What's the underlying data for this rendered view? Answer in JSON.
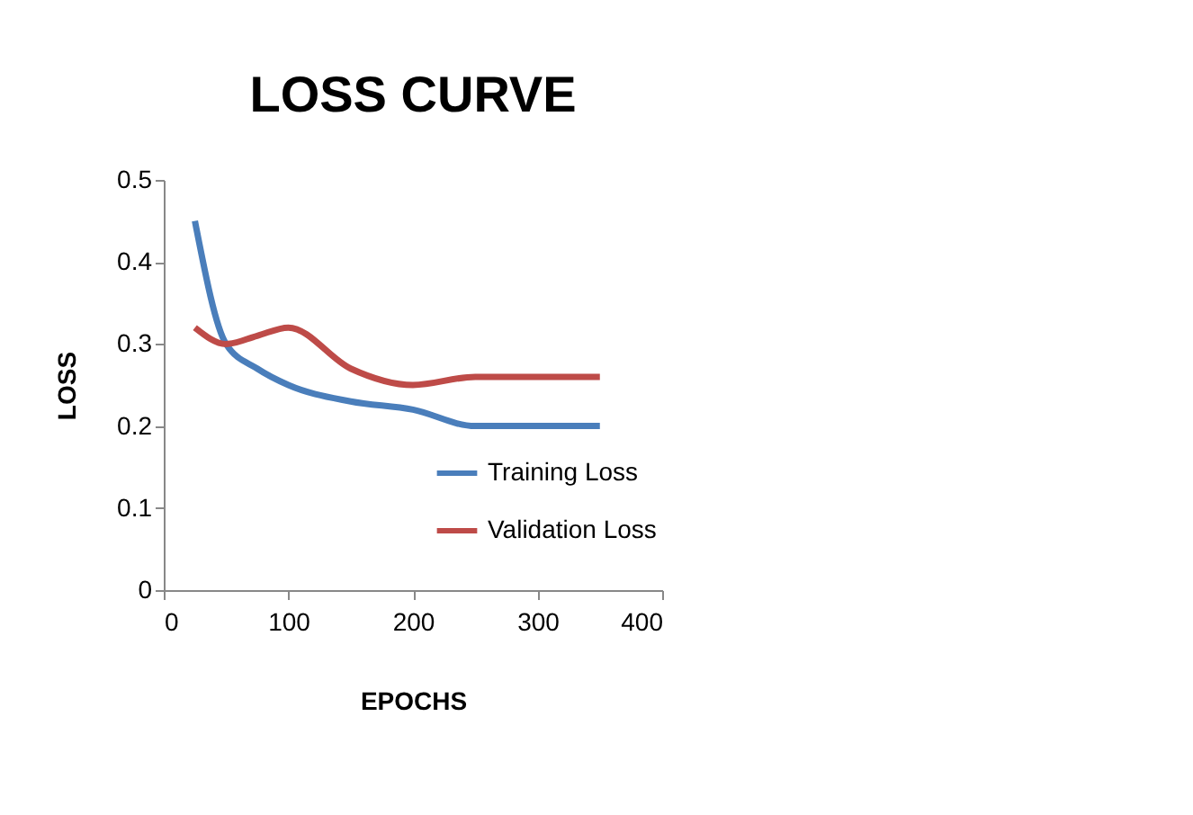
{
  "chart_data": {
    "type": "line",
    "title": "LOSS CURVE",
    "xlabel": "EPOCHS",
    "ylabel": "LOSS",
    "x": [
      25,
      50,
      75,
      100,
      150,
      200,
      250,
      300,
      350
    ],
    "series": [
      {
        "name": "Training Loss",
        "color": "#4a7ebb",
        "values": [
          0.45,
          0.3,
          0.27,
          0.25,
          0.23,
          0.22,
          0.2,
          0.2,
          0.2
        ]
      },
      {
        "name": "Validation Loss",
        "color": "#be4b48",
        "values": [
          0.32,
          0.3,
          0.31,
          0.32,
          0.27,
          0.25,
          0.26,
          0.26,
          0.26
        ]
      }
    ],
    "xlim": [
      0,
      400
    ],
    "xticks": [
      0,
      100,
      200,
      300,
      400
    ],
    "ylim": [
      0,
      0.5
    ],
    "yticks": [
      0,
      0.1,
      0.2,
      0.3,
      0.4,
      0.5
    ],
    "grid": false,
    "legend": "bottom right",
    "marker": "none",
    "line_style": "solid"
  }
}
